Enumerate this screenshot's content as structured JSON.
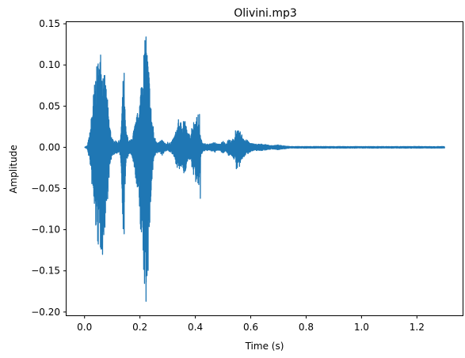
{
  "chart_data": {
    "type": "line",
    "title": "Olivini.mp3",
    "xlabel": "Time (s)",
    "ylabel": "Amplitude",
    "xlim": [
      -0.065,
      1.365
    ],
    "ylim": [
      -0.204,
      0.152
    ],
    "xticks": [
      0.0,
      0.2,
      0.4,
      0.6,
      0.8,
      1.0,
      1.2
    ],
    "xtick_labels": [
      "0.0",
      "0.2",
      "0.4",
      "0.6",
      "0.8",
      "1.0",
      "1.2"
    ],
    "yticks": [
      0.15,
      0.1,
      0.05,
      0.0,
      -0.05,
      -0.1,
      -0.15,
      -0.2
    ],
    "ytick_labels": [
      "0.15",
      "0.10",
      "0.05",
      "0.00",
      "−0.05",
      "−0.10",
      "−0.15",
      "−0.20"
    ],
    "grid": false,
    "legend": "none",
    "series": [
      {
        "color": "#1f77b4",
        "envelope": {
          "t": [
            0.0,
            0.01,
            0.02,
            0.03,
            0.04,
            0.05,
            0.06,
            0.07,
            0.08,
            0.09,
            0.1,
            0.11,
            0.12,
            0.13,
            0.14,
            0.15,
            0.16,
            0.17,
            0.18,
            0.19,
            0.2,
            0.21,
            0.22,
            0.23,
            0.24,
            0.25,
            0.26,
            0.27,
            0.28,
            0.29,
            0.3,
            0.31,
            0.32,
            0.33,
            0.34,
            0.35,
            0.36,
            0.37,
            0.38,
            0.39,
            0.4,
            0.41,
            0.42,
            0.43,
            0.44,
            0.45,
            0.46,
            0.47,
            0.48,
            0.49,
            0.5,
            0.51,
            0.52,
            0.53,
            0.54,
            0.55,
            0.56,
            0.57,
            0.58,
            0.59,
            0.6,
            0.62,
            0.64,
            0.66,
            0.68,
            0.7,
            0.72,
            0.74,
            0.76,
            0.8,
            0.9,
            1.0,
            1.1,
            1.2,
            1.3
          ],
          "upper": [
            0.0,
            0.002,
            0.02,
            0.06,
            0.09,
            0.11,
            0.11,
            0.095,
            0.07,
            0.03,
            0.01,
            0.008,
            0.007,
            0.01,
            0.09,
            0.02,
            0.008,
            0.01,
            0.025,
            0.04,
            0.06,
            0.11,
            0.135,
            0.11,
            0.05,
            0.015,
            0.008,
            0.006,
            0.01,
            0.005,
            0.004,
            0.006,
            0.01,
            0.02,
            0.035,
            0.03,
            0.04,
            0.02,
            0.015,
            0.03,
            0.035,
            0.04,
            0.01,
            0.005,
            0.004,
            0.004,
            0.005,
            0.006,
            0.004,
            0.004,
            0.008,
            0.004,
            0.01,
            0.008,
            0.012,
            0.02,
            0.02,
            0.015,
            0.01,
            0.008,
            0.005,
            0.004,
            0.004,
            0.003,
            0.002,
            0.003,
            0.002,
            0.001,
            0.001,
            0.001,
            0.001,
            0.001,
            0.001,
            0.001,
            0.001
          ],
          "lower": [
            0.0,
            -0.002,
            -0.02,
            -0.06,
            -0.1,
            -0.125,
            -0.13,
            -0.11,
            -0.08,
            -0.03,
            -0.01,
            -0.008,
            -0.007,
            -0.01,
            -0.105,
            -0.02,
            -0.008,
            -0.01,
            -0.03,
            -0.05,
            -0.085,
            -0.15,
            -0.187,
            -0.15,
            -0.06,
            -0.015,
            -0.008,
            -0.006,
            -0.01,
            -0.005,
            -0.004,
            -0.006,
            -0.01,
            -0.02,
            -0.03,
            -0.025,
            -0.035,
            -0.02,
            -0.015,
            -0.03,
            -0.04,
            -0.06,
            -0.01,
            -0.005,
            -0.004,
            -0.004,
            -0.005,
            -0.006,
            -0.004,
            -0.004,
            -0.008,
            -0.004,
            -0.01,
            -0.01,
            -0.015,
            -0.025,
            -0.025,
            -0.015,
            -0.01,
            -0.008,
            -0.005,
            -0.004,
            -0.004,
            -0.003,
            -0.002,
            -0.003,
            -0.002,
            -0.001,
            -0.001,
            -0.001,
            -0.001,
            -0.001,
            -0.001,
            -0.001,
            -0.001
          ]
        },
        "duration": 1.3,
        "peaks": [
          {
            "t": 0.058,
            "y": 0.112
          },
          {
            "t": 0.065,
            "y": -0.13
          },
          {
            "t": 0.143,
            "y": 0.09
          },
          {
            "t": 0.143,
            "y": -0.105
          },
          {
            "t": 0.222,
            "y": 0.134
          },
          {
            "t": 0.222,
            "y": -0.187
          },
          {
            "t": 0.248,
            "y": 0.025
          },
          {
            "t": 0.3,
            "y": 0.006
          },
          {
            "t": 0.415,
            "y": 0.04
          },
          {
            "t": 0.418,
            "y": -0.062
          },
          {
            "t": 0.545,
            "y": 0.02
          },
          {
            "t": 0.548,
            "y": -0.026
          }
        ]
      }
    ]
  }
}
